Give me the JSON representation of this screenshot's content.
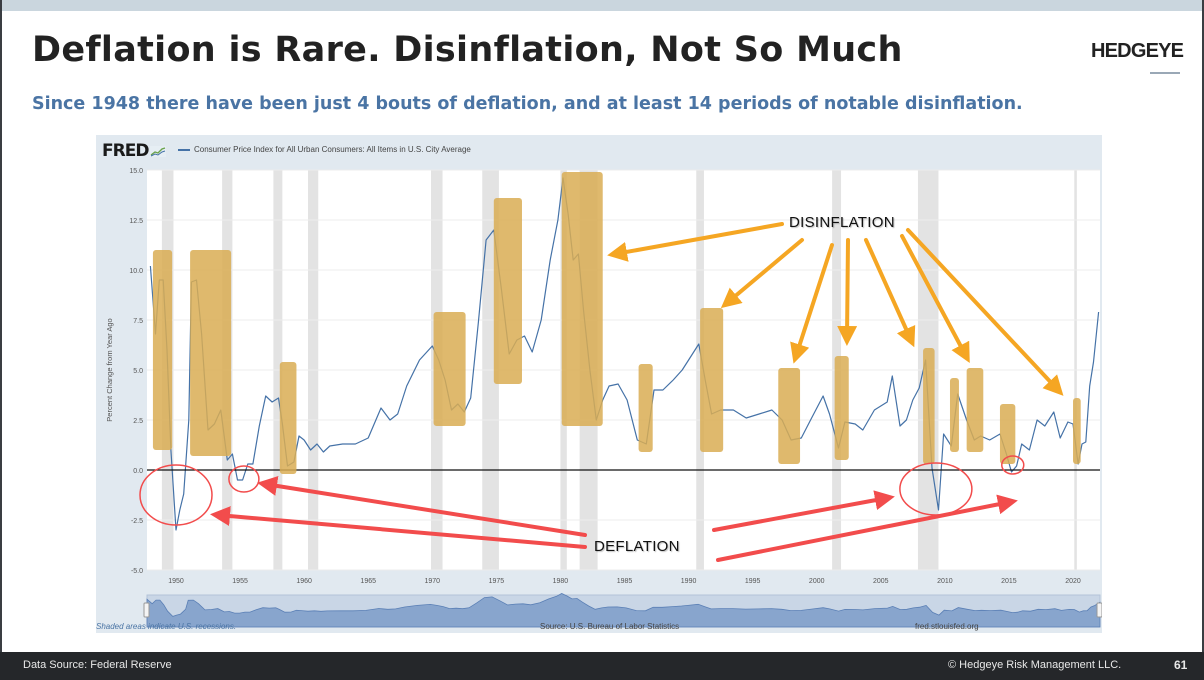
{
  "slide": {
    "title": "Deflation is Rare. Disinflation, Not So Much",
    "subtitle": "Since 1948 there have been just 4 bouts of deflation, and at least 14 periods of notable disinflation.",
    "logo": "HEDGEYE",
    "page_number": "61"
  },
  "footer": {
    "data_source": "Data Source: Federal Reserve",
    "copyright": "© Hedgeye Risk Management LLC."
  },
  "fred": {
    "logo": "FRED",
    "legend": "Consumer Price Index for All Urban Consumers: All Items in U.S. City Average",
    "recession_note": "Shaded areas indicate U.S. recessions.",
    "source": "Source: U.S. Bureau of Labor Statistics",
    "site": "fred.stlouisfed.org"
  },
  "annotations": {
    "disinflation_label": "DISINFLATION",
    "deflation_label": "DEFLATION"
  },
  "colors": {
    "series_line": "#4572a7",
    "disinflation_box": "#d9ad54",
    "disinflation_arrow": "#f5a623",
    "deflation_arrow": "#f24c4c",
    "recession_band": "#e3e3e3",
    "title": "#222222",
    "subtitle": "#4a74a4",
    "footer_bg": "#25272a"
  },
  "chart_data": {
    "type": "line",
    "title": "Consumer Price Index for All Urban Consumers: All Items in U.S. City Average",
    "xlabel": "",
    "ylabel": "Percent Change from Year Ago",
    "ylim": [
      -5.0,
      15.0
    ],
    "xlim": [
      1948,
      2022
    ],
    "y_ticks": [
      "15.0",
      "12.5",
      "10.0",
      "7.5",
      "5.0",
      "2.5",
      "0.0",
      "-2.5",
      "-5.0"
    ],
    "x_ticks": [
      "1950",
      "1955",
      "1960",
      "1965",
      "1970",
      "1975",
      "1980",
      "1985",
      "1990",
      "1995",
      "2000",
      "2005",
      "2010",
      "2015",
      "2020"
    ],
    "grid": true,
    "series": [
      {
        "name": "CPI, Percent Change from Year Ago",
        "x": [
          1948.0,
          1948.4,
          1948.7,
          1949.0,
          1949.3,
          1949.6,
          1950.0,
          1950.3,
          1950.6,
          1951.0,
          1951.2,
          1951.6,
          1952.0,
          1952.5,
          1953.0,
          1953.5,
          1954.0,
          1954.4,
          1954.8,
          1955.2,
          1955.6,
          1956.0,
          1956.5,
          1957.0,
          1957.5,
          1958.0,
          1958.3,
          1958.7,
          1959.2,
          1959.6,
          1960.0,
          1960.5,
          1961.0,
          1961.5,
          1962.0,
          1963.0,
          1964.0,
          1965.0,
          1966.0,
          1966.7,
          1967.3,
          1968.0,
          1969.0,
          1970.0,
          1970.5,
          1971.0,
          1971.5,
          1972.0,
          1972.5,
          1973.0,
          1973.6,
          1974.2,
          1974.8,
          1975.4,
          1976.0,
          1976.6,
          1977.2,
          1977.8,
          1978.5,
          1979.2,
          1979.8,
          1980.2,
          1980.6,
          1981.0,
          1981.4,
          1981.8,
          1982.3,
          1982.8,
          1983.3,
          1983.8,
          1984.5,
          1985.2,
          1986.0,
          1986.7,
          1987.3,
          1988.0,
          1988.8,
          1989.5,
          1990.0,
          1990.8,
          1991.3,
          1991.8,
          1992.5,
          1993.5,
          1994.5,
          1995.5,
          1996.5,
          1997.3,
          1998.0,
          1998.8,
          1999.6,
          2000.5,
          2001.0,
          2001.7,
          2002.2,
          2003.0,
          2003.6,
          2004.5,
          2005.5,
          2005.9,
          2006.5,
          2007.0,
          2007.5,
          2008.0,
          2008.5,
          2009.0,
          2009.5,
          2009.9,
          2010.5,
          2011.0,
          2011.7,
          2012.3,
          2012.8,
          2013.5,
          2014.3,
          2014.8,
          2015.2,
          2015.6,
          2016.0,
          2016.6,
          2017.2,
          2017.8,
          2018.5,
          2019.0,
          2019.6,
          2020.0,
          2020.4,
          2020.7,
          2021.0,
          2021.3,
          2021.6,
          2022.0
        ],
        "values": [
          10.2,
          6.8,
          9.5,
          9.5,
          6.0,
          1.0,
          -3.0,
          -2.0,
          -1.2,
          2.5,
          9.4,
          9.5,
          6.8,
          2.0,
          2.3,
          3.0,
          0.5,
          0.8,
          -0.5,
          -0.5,
          0.3,
          0.3,
          2.2,
          3.7,
          3.4,
          3.6,
          2.3,
          0.2,
          0.4,
          1.7,
          1.5,
          1.0,
          1.3,
          0.9,
          1.2,
          1.3,
          1.3,
          1.6,
          3.1,
          2.5,
          2.8,
          4.2,
          5.5,
          6.2,
          5.5,
          4.5,
          3.0,
          3.3,
          2.9,
          3.6,
          7.4,
          11.5,
          12.0,
          9.0,
          5.8,
          6.5,
          6.7,
          5.9,
          7.5,
          10.5,
          12.5,
          14.6,
          12.8,
          10.5,
          10.8,
          8.0,
          5.0,
          2.5,
          3.5,
          4.2,
          4.3,
          3.5,
          1.5,
          1.3,
          4.0,
          4.0,
          4.5,
          5.0,
          5.5,
          6.3,
          4.5,
          2.8,
          3.0,
          3.0,
          2.6,
          2.8,
          3.0,
          2.5,
          1.5,
          1.6,
          2.6,
          3.7,
          2.8,
          1.1,
          2.4,
          2.3,
          2.0,
          3.0,
          3.4,
          4.7,
          2.2,
          2.5,
          3.5,
          4.1,
          5.5,
          0.1,
          -2.0,
          1.8,
          1.2,
          3.8,
          2.5,
          1.5,
          1.7,
          1.5,
          1.8,
          0.8,
          -0.1,
          0.2,
          1.3,
          1.0,
          2.5,
          2.2,
          2.9,
          1.6,
          2.4,
          2.3,
          0.3,
          1.3,
          1.4,
          4.2,
          5.4,
          7.9
        ]
      }
    ],
    "recession_bands": [
      [
        1948.9,
        1949.8
      ],
      [
        1953.6,
        1954.4
      ],
      [
        1957.6,
        1958.3
      ],
      [
        1960.3,
        1961.1
      ],
      [
        1969.9,
        1970.8
      ],
      [
        1973.9,
        1975.2
      ],
      [
        1980.0,
        1980.5
      ],
      [
        1981.5,
        1982.9
      ],
      [
        1990.6,
        1991.2
      ],
      [
        2001.2,
        2001.9
      ],
      [
        2007.9,
        2009.5
      ],
      [
        2020.1,
        2020.3
      ]
    ],
    "annotations": {
      "disinflation_periods": [
        [
          1948.2,
          1949.7
        ],
        [
          1951.1,
          1954.3
        ],
        [
          1958.1,
          1959.4
        ],
        [
          1970.1,
          1972.6
        ],
        [
          1974.8,
          1977.0
        ],
        [
          1980.1,
          1983.3
        ],
        [
          1986.1,
          1987.2
        ],
        [
          1990.9,
          1992.7
        ],
        [
          1997.0,
          1998.7
        ],
        [
          2001.4,
          2002.5
        ],
        [
          2008.3,
          2009.2
        ],
        [
          2010.4,
          2011.1
        ],
        [
          2011.7,
          2013.0
        ],
        [
          2014.3,
          2015.5
        ],
        [
          2020.0,
          2020.6
        ]
      ],
      "deflation_periods": [
        [
          1949.5,
          1950.4
        ],
        [
          1954.6,
          1955.8
        ],
        [
          2009.2,
          2010.0
        ],
        [
          2015.0,
          2015.9
        ]
      ]
    }
  }
}
